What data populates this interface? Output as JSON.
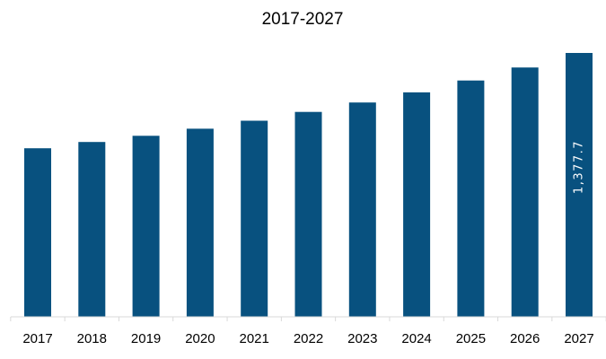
{
  "chart_data": {
    "type": "bar",
    "title": "2017-2027",
    "xlabel": "",
    "ylabel": "",
    "categories": [
      "2017",
      "2018",
      "2019",
      "2020",
      "2021",
      "2022",
      "2023",
      "2024",
      "2025",
      "2026",
      "2027"
    ],
    "values": [
      880,
      913,
      945,
      982,
      1024,
      1070,
      1119,
      1172,
      1234,
      1302,
      1377.7
    ],
    "data_labels": [
      "",
      "",
      "",
      "",
      "",
      "",
      "",
      "",
      "",
      "",
      "1,377.7"
    ],
    "ylim": [
      0,
      1450
    ],
    "grid": false,
    "legend": "none",
    "colors": {
      "bar": "#08517f",
      "axis": "#d9d9d9",
      "text": "#000000",
      "data_label": "#ffffff"
    }
  }
}
